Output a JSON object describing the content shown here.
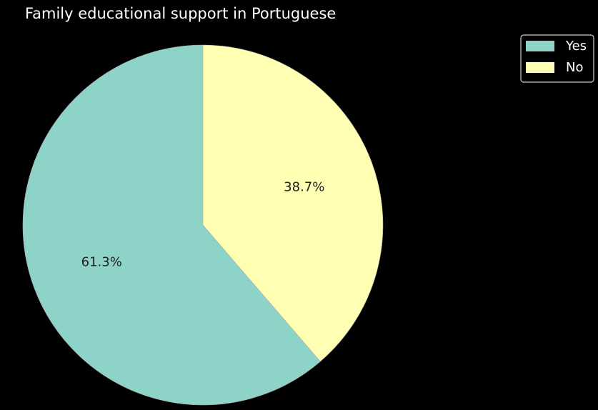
{
  "chart_data": {
    "type": "pie",
    "title": "Family educational support in Portuguese",
    "slices": [
      {
        "label": "Yes",
        "value": 61.3,
        "pct_label": "61.3%",
        "color": "#8dd3c7"
      },
      {
        "label": "No",
        "value": 38.7,
        "pct_label": "38.7%",
        "color": "#ffffb3"
      }
    ],
    "start_angle_deg": 90,
    "direction": "counterclockwise",
    "legend": {
      "placement": "top-right",
      "entries": [
        "Yes",
        "No"
      ]
    },
    "background": "#000000",
    "edge_color": "#aaaaaa"
  }
}
